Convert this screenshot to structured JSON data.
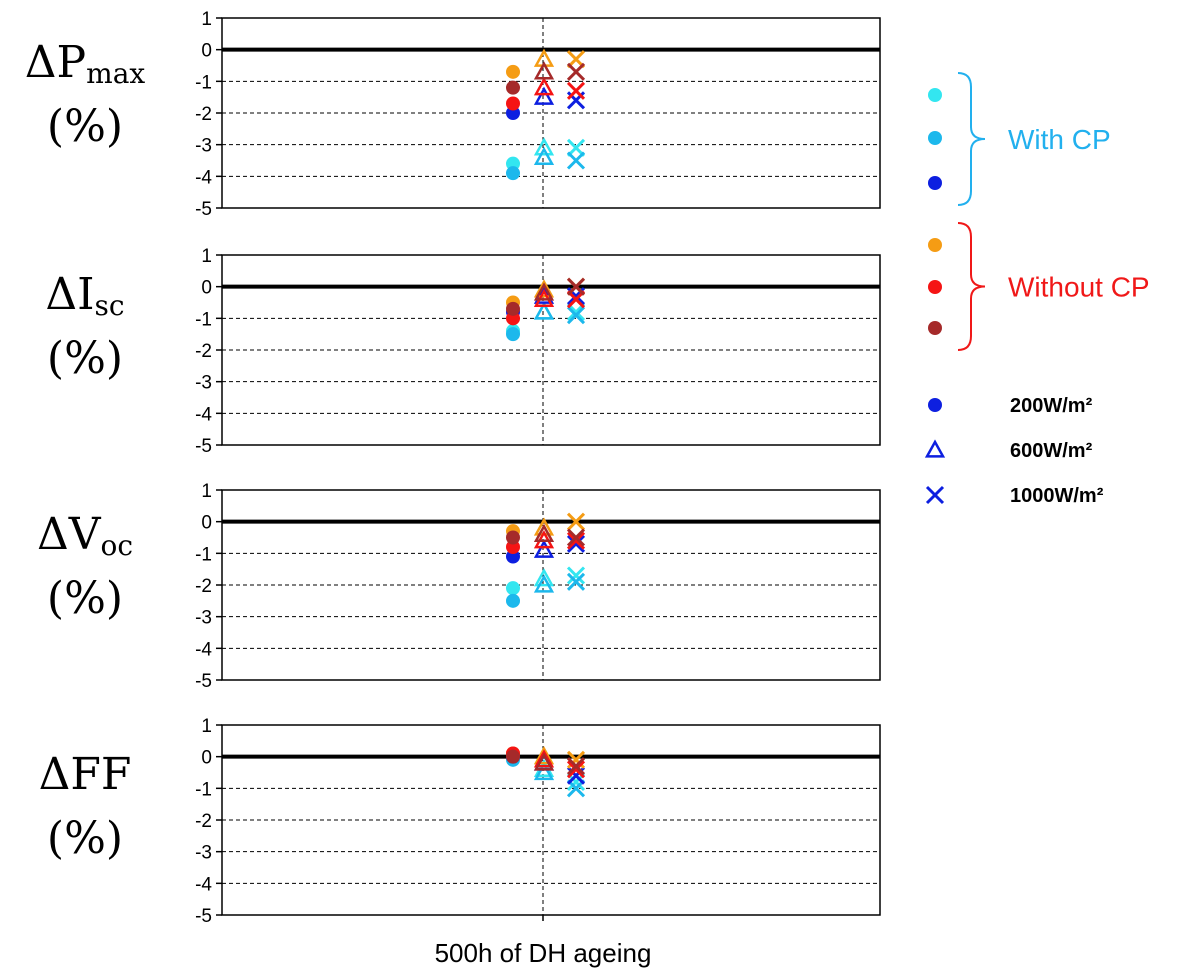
{
  "chart_data": {
    "type": "scatter",
    "title": "",
    "xlabel": "500h of DH ageing",
    "ylim": [
      -5,
      1
    ],
    "yticks": [
      1,
      0,
      -1,
      -2,
      -3,
      -4,
      -5
    ],
    "colors": {
      "with_cp_1": "#33e6f0",
      "with_cp_2": "#1cb8ec",
      "with_cp_3": "#0d1fe0",
      "without_cp_1": "#f59c14",
      "without_cp_2": "#f51414",
      "without_cp_3": "#a52a2a",
      "with_cp_text": "#22b0ee",
      "without_cp_text": "#f01818"
    },
    "legend": {
      "groups": [
        {
          "label": "With CP",
          "color_key": "with_cp_text",
          "members": [
            "with_cp_1",
            "with_cp_2",
            "with_cp_3"
          ]
        },
        {
          "label": "Without CP",
          "color_key": "without_cp_text",
          "members": [
            "without_cp_1",
            "without_cp_2",
            "without_cp_3"
          ]
        }
      ],
      "irradiance": [
        {
          "label": "200W/m²",
          "marker": "circle"
        },
        {
          "label": "600W/m²",
          "marker": "triangle"
        },
        {
          "label": "1000W/m²",
          "marker": "cross"
        }
      ]
    },
    "panels": [
      {
        "symbol": "ΔP",
        "subscript": "max",
        "unit": "(%)",
        "series": [
          {
            "color_key": "with_cp_1",
            "values": {
              "200W/m²": -3.6,
              "600W/m²": -3.1,
              "1000W/m²": -3.1
            }
          },
          {
            "color_key": "with_cp_2",
            "values": {
              "200W/m²": -3.9,
              "600W/m²": -3.4,
              "1000W/m²": -3.5
            }
          },
          {
            "color_key": "with_cp_3",
            "values": {
              "200W/m²": -2.0,
              "600W/m²": -1.5,
              "1000W/m²": -1.6
            }
          },
          {
            "color_key": "without_cp_1",
            "values": {
              "200W/m²": -0.7,
              "600W/m²": -0.3,
              "1000W/m²": -0.3
            }
          },
          {
            "color_key": "without_cp_2",
            "values": {
              "200W/m²": -1.7,
              "600W/m²": -1.2,
              "1000W/m²": -1.3
            }
          },
          {
            "color_key": "without_cp_3",
            "values": {
              "200W/m²": -1.2,
              "600W/m²": -0.7,
              "1000W/m²": -0.7
            }
          }
        ]
      },
      {
        "symbol": "ΔI",
        "subscript": "sc",
        "unit": "(%)",
        "series": [
          {
            "color_key": "with_cp_1",
            "values": {
              "200W/m²": -1.4,
              "600W/m²": -0.8,
              "1000W/m²": -0.8
            }
          },
          {
            "color_key": "with_cp_2",
            "values": {
              "200W/m²": -1.5,
              "600W/m²": -0.8,
              "1000W/m²": -0.9
            }
          },
          {
            "color_key": "with_cp_3",
            "values": {
              "200W/m²": -0.8,
              "600W/m²": -0.3,
              "1000W/m²": -0.3
            }
          },
          {
            "color_key": "without_cp_1",
            "values": {
              "200W/m²": -0.5,
              "600W/m²": -0.1,
              "1000W/m²": 0.0
            }
          },
          {
            "color_key": "without_cp_2",
            "values": {
              "200W/m²": -1.0,
              "600W/m²": -0.4,
              "1000W/m²": -0.4
            }
          },
          {
            "color_key": "without_cp_3",
            "values": {
              "200W/m²": -0.7,
              "600W/m²": -0.2,
              "1000W/m²": 0.0
            }
          }
        ]
      },
      {
        "symbol": "ΔV",
        "subscript": "oc",
        "unit": "(%)",
        "series": [
          {
            "color_key": "with_cp_1",
            "values": {
              "200W/m²": -2.1,
              "600W/m²": -1.8,
              "1000W/m²": -1.7
            }
          },
          {
            "color_key": "with_cp_2",
            "values": {
              "200W/m²": -2.5,
              "600W/m²": -2.0,
              "1000W/m²": -1.9
            }
          },
          {
            "color_key": "with_cp_3",
            "values": {
              "200W/m²": -1.1,
              "600W/m²": -0.9,
              "1000W/m²": -0.7
            }
          },
          {
            "color_key": "without_cp_1",
            "values": {
              "200W/m²": -0.3,
              "600W/m²": -0.2,
              "1000W/m²": 0.0
            }
          },
          {
            "color_key": "without_cp_2",
            "values": {
              "200W/m²": -0.8,
              "600W/m²": -0.6,
              "1000W/m²": -0.6
            }
          },
          {
            "color_key": "without_cp_3",
            "values": {
              "200W/m²": -0.5,
              "600W/m²": -0.4,
              "1000W/m²": -0.5
            }
          }
        ]
      },
      {
        "symbol": "ΔFF",
        "subscript": "",
        "unit": "(%)",
        "series": [
          {
            "color_key": "with_cp_1",
            "values": {
              "200W/m²": 0.0,
              "600W/m²": -0.4,
              "1000W/m²": -0.8
            }
          },
          {
            "color_key": "with_cp_2",
            "values": {
              "200W/m²": -0.1,
              "600W/m²": -0.5,
              "1000W/m²": -1.0
            }
          },
          {
            "color_key": "with_cp_3",
            "values": {
              "200W/m²": 0.0,
              "600W/m²": -0.2,
              "1000W/m²": -0.6
            }
          },
          {
            "color_key": "without_cp_1",
            "values": {
              "200W/m²": 0.1,
              "600W/m²": 0.0,
              "1000W/m²": -0.1
            }
          },
          {
            "color_key": "without_cp_2",
            "values": {
              "200W/m²": 0.1,
              "600W/m²": -0.1,
              "1000W/m²": -0.4
            }
          },
          {
            "color_key": "without_cp_3",
            "values": {
              "200W/m²": 0.0,
              "600W/m²": -0.2,
              "1000W/m²": -0.3
            }
          }
        ]
      }
    ]
  }
}
